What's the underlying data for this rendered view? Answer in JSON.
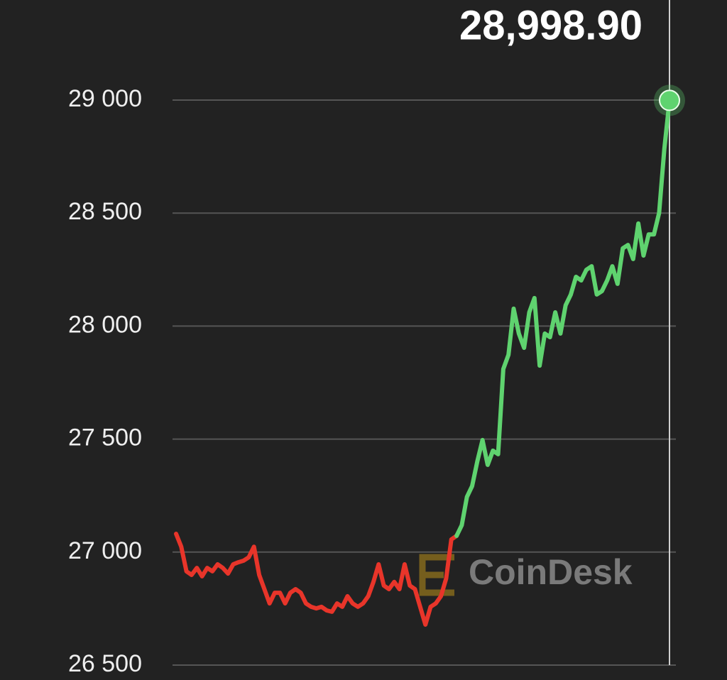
{
  "chart_data": {
    "type": "line",
    "title": "28,998.90",
    "watermark": "CoinDesk",
    "up_color": "#5fd36f",
    "down_color": "#e8352a",
    "grid": true,
    "ylim": [
      26500,
      29443
    ],
    "yticks": [
      {
        "value": 26500,
        "label": "26 500"
      },
      {
        "value": 27000,
        "label": "27 000"
      },
      {
        "value": 27500,
        "label": "27 500"
      },
      {
        "value": 28000,
        "label": "28 000"
      },
      {
        "value": 28500,
        "label": "28 500"
      },
      {
        "value": 29000,
        "label": "29 000"
      }
    ],
    "values": [
      27081,
      27024,
      26915,
      26899,
      26930,
      26893,
      26930,
      26915,
      26946,
      26930,
      26905,
      26946,
      26955,
      26962,
      26977,
      27024,
      26899,
      26836,
      26773,
      26820,
      26820,
      26773,
      26820,
      26836,
      26820,
      26773,
      26758,
      26751,
      26758,
      26742,
      26736,
      26773,
      26758,
      26805,
      26773,
      26758,
      26773,
      26805,
      26868,
      26946,
      26852,
      26836,
      26868,
      26836,
      26946,
      26852,
      26836,
      26758,
      26679,
      26758,
      26773,
      26805,
      26883,
      27056,
      27072,
      27119,
      27244,
      27292,
      27401,
      27496,
      27386,
      27449,
      27433,
      27810,
      27873,
      28077,
      27967,
      27904,
      28061,
      28124,
      27825,
      27967,
      27951,
      28061,
      27967,
      28092,
      28140,
      28218,
      28202,
      28249,
      28265,
      28140,
      28155,
      28202,
      28265,
      28187,
      28344,
      28359,
      28297,
      28454,
      28312,
      28406,
      28406,
      28501,
      28783,
      28998.9
    ]
  }
}
